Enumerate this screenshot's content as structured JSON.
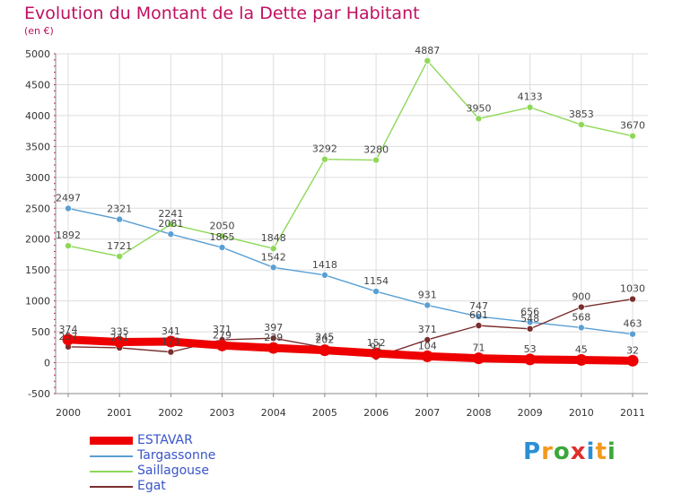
{
  "chart_data": {
    "type": "line",
    "title": "Evolution du Montant de la Dette par Habitant",
    "subtitle": "(en €)",
    "xlabel": "",
    "ylabel": "",
    "ylim": [
      -500,
      5000
    ],
    "yticks": [
      -500,
      0,
      500,
      1000,
      1500,
      2000,
      2500,
      3000,
      3500,
      4000,
      4500,
      5000
    ],
    "grid": true,
    "categories": [
      "2000",
      "2001",
      "2002",
      "2003",
      "2004",
      "2005",
      "2006",
      "2007",
      "2008",
      "2009",
      "2010",
      "2011"
    ],
    "series": [
      {
        "name": "ESTAVAR",
        "color": "#ee0000",
        "values": [
          374,
          335,
          341,
          279,
          239,
          202,
          152,
          104,
          71,
          53,
          45,
          32
        ],
        "labels": [
          "374",
          "335",
          "341",
          "279",
          "239",
          "202",
          "152",
          "104",
          "71",
          "53",
          "45",
          "32"
        ]
      },
      {
        "name": "Targassonne",
        "color": "#5a9fd4",
        "values": [
          2497,
          2321,
          2081,
          1865,
          1542,
          1418,
          1154,
          931,
          747,
          656,
          568,
          463
        ],
        "labels": [
          "2497",
          "2321",
          "2081",
          "1865",
          "1542",
          "1418",
          "1154",
          "931",
          "747",
          "656",
          "568",
          "463"
        ]
      },
      {
        "name": "Saillagouse",
        "color": "#8ed858",
        "values": [
          1892,
          1721,
          2241,
          2050,
          1848,
          3292,
          3280,
          4887,
          3950,
          4133,
          3853,
          3670
        ],
        "labels": [
          "1892",
          "1721",
          "2241",
          "2050",
          "1848",
          "3292",
          "3280",
          "4887",
          "3950",
          "4133",
          "3853",
          "3670"
        ]
      },
      {
        "name": "Egat",
        "color": "#7a2e2e",
        "values": [
          257,
          241,
          173,
          371,
          397,
          245,
          91,
          371,
          601,
          548,
          900,
          1030
        ],
        "labels": [
          "257",
          "241",
          "173",
          "371",
          "397",
          "245",
          "91",
          "371",
          "601",
          "548",
          "900",
          "1030"
        ]
      }
    ],
    "legend_position": "bottom-left"
  },
  "legend": {
    "items": [
      "ESTAVAR",
      "Targassonne",
      "Saillagouse",
      "Egat"
    ]
  },
  "logo": {
    "text": "Proxiti",
    "letters": [
      "P",
      "r",
      "o",
      "x",
      "i",
      "t",
      "i"
    ],
    "colors": [
      "#2a8fd6",
      "#f39a1e",
      "#3aa83a",
      "#e0302c",
      "#2a8fd6",
      "#f39a1e",
      "#3aa83a"
    ]
  }
}
